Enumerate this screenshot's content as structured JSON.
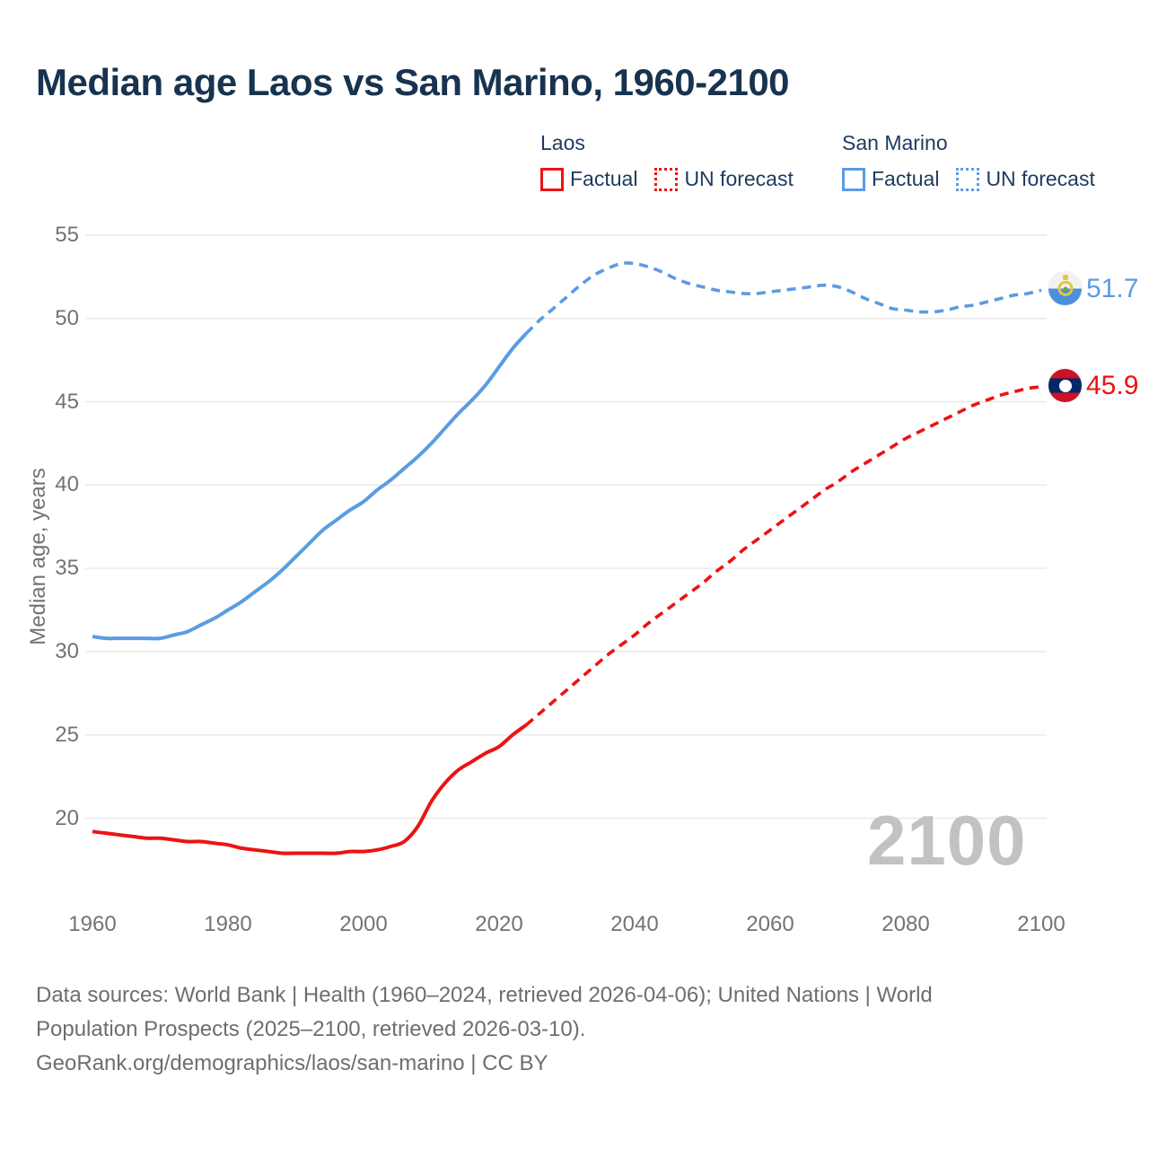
{
  "title": "Median age Laos vs San Marino, 1960-2100",
  "watermark": "2100",
  "colors": {
    "laos": "#ed1212",
    "san_marino": "#5b9ce2",
    "navy_text": "#1d3a5e",
    "axis_text": "#737373",
    "gridline": "#e7e7e7",
    "watermark": "#c2c2c2",
    "footer_text": "#6e6e6e"
  },
  "legend": {
    "groups": [
      {
        "name": "Laos",
        "factual_label": "Factual",
        "forecast_label": "UN forecast"
      },
      {
        "name": "San Marino",
        "factual_label": "Factual",
        "forecast_label": "UN forecast"
      }
    ]
  },
  "end_labels": [
    {
      "series": "San Marino",
      "value": "51.7",
      "flag": "san-marino-flag"
    },
    {
      "series": "Laos",
      "value": "45.9",
      "flag": "laos-flag"
    }
  ],
  "footer": {
    "line1": "Data sources: World Bank | Health (1960–2024, retrieved 2026-04-06); United Nations | World",
    "line2": "Population Prospects (2025–2100, retrieved 2026-03-10).",
    "line3": "GeoRank.org/demographics/laos/san-marino | CC BY"
  },
  "chart_data": {
    "type": "line",
    "title": "Median age Laos vs San Marino, 1960-2100",
    "xlabel": "",
    "ylabel": "Median age, years",
    "x_range": [
      1960,
      2100
    ],
    "y_range": [
      20,
      55
    ],
    "x_ticks": [
      1960,
      1980,
      2000,
      2020,
      2040,
      2060,
      2080,
      2100
    ],
    "y_ticks": [
      20,
      25,
      30,
      35,
      40,
      45,
      50,
      55
    ],
    "grid": "horizontal",
    "legend_position": "top-right",
    "series": [
      {
        "name": "Laos — Factual",
        "country": "Laos",
        "kind": "factual",
        "style": "solid",
        "color": "#ed1212",
        "points": [
          [
            1960,
            19.2
          ],
          [
            1962,
            19.1
          ],
          [
            1964,
            19.0
          ],
          [
            1966,
            18.9
          ],
          [
            1968,
            18.8
          ],
          [
            1970,
            18.8
          ],
          [
            1972,
            18.7
          ],
          [
            1974,
            18.6
          ],
          [
            1976,
            18.6
          ],
          [
            1978,
            18.5
          ],
          [
            1980,
            18.4
          ],
          [
            1982,
            18.2
          ],
          [
            1984,
            18.1
          ],
          [
            1986,
            18.0
          ],
          [
            1988,
            17.9
          ],
          [
            1990,
            17.9
          ],
          [
            1992,
            17.9
          ],
          [
            1994,
            17.9
          ],
          [
            1996,
            17.9
          ],
          [
            1998,
            18.0
          ],
          [
            2000,
            18.0
          ],
          [
            2002,
            18.1
          ],
          [
            2004,
            18.3
          ],
          [
            2006,
            18.6
          ],
          [
            2008,
            19.5
          ],
          [
            2010,
            21.0
          ],
          [
            2012,
            22.1
          ],
          [
            2014,
            22.9
          ],
          [
            2016,
            23.4
          ],
          [
            2018,
            23.9
          ],
          [
            2020,
            24.3
          ],
          [
            2022,
            25.0
          ],
          [
            2024,
            25.6
          ]
        ]
      },
      {
        "name": "Laos — UN forecast",
        "country": "Laos",
        "kind": "forecast",
        "style": "dashed",
        "color": "#ed1212",
        "points": [
          [
            2024,
            25.6
          ],
          [
            2026,
            26.3
          ],
          [
            2028,
            27.0
          ],
          [
            2030,
            27.7
          ],
          [
            2032,
            28.4
          ],
          [
            2034,
            29.1
          ],
          [
            2036,
            29.8
          ],
          [
            2038,
            30.4
          ],
          [
            2040,
            31.0
          ],
          [
            2042,
            31.7
          ],
          [
            2044,
            32.3
          ],
          [
            2046,
            32.9
          ],
          [
            2048,
            33.5
          ],
          [
            2050,
            34.1
          ],
          [
            2052,
            34.8
          ],
          [
            2054,
            35.4
          ],
          [
            2056,
            36.1
          ],
          [
            2058,
            36.7
          ],
          [
            2060,
            37.3
          ],
          [
            2062,
            37.9
          ],
          [
            2064,
            38.5
          ],
          [
            2066,
            39.1
          ],
          [
            2068,
            39.7
          ],
          [
            2070,
            40.2
          ],
          [
            2072,
            40.8
          ],
          [
            2074,
            41.3
          ],
          [
            2076,
            41.8
          ],
          [
            2078,
            42.3
          ],
          [
            2080,
            42.8
          ],
          [
            2082,
            43.2
          ],
          [
            2084,
            43.6
          ],
          [
            2086,
            44.0
          ],
          [
            2088,
            44.4
          ],
          [
            2090,
            44.8
          ],
          [
            2092,
            45.1
          ],
          [
            2094,
            45.4
          ],
          [
            2096,
            45.6
          ],
          [
            2098,
            45.8
          ],
          [
            2100,
            45.9
          ]
        ]
      },
      {
        "name": "San Marino — Factual",
        "country": "San Marino",
        "kind": "factual",
        "style": "solid",
        "color": "#5b9ce2",
        "points": [
          [
            1960,
            30.9
          ],
          [
            1962,
            30.8
          ],
          [
            1964,
            30.8
          ],
          [
            1966,
            30.8
          ],
          [
            1968,
            30.8
          ],
          [
            1970,
            30.8
          ],
          [
            1972,
            31.0
          ],
          [
            1974,
            31.2
          ],
          [
            1976,
            31.6
          ],
          [
            1978,
            32.0
          ],
          [
            1980,
            32.5
          ],
          [
            1982,
            33.0
          ],
          [
            1984,
            33.6
          ],
          [
            1986,
            34.2
          ],
          [
            1988,
            34.9
          ],
          [
            1990,
            35.7
          ],
          [
            1992,
            36.5
          ],
          [
            1994,
            37.3
          ],
          [
            1996,
            37.9
          ],
          [
            1998,
            38.5
          ],
          [
            2000,
            39.0
          ],
          [
            2002,
            39.7
          ],
          [
            2004,
            40.3
          ],
          [
            2006,
            41.0
          ],
          [
            2008,
            41.7
          ],
          [
            2010,
            42.5
          ],
          [
            2012,
            43.4
          ],
          [
            2014,
            44.3
          ],
          [
            2016,
            45.1
          ],
          [
            2018,
            46.0
          ],
          [
            2020,
            47.1
          ],
          [
            2022,
            48.2
          ],
          [
            2024,
            49.1
          ]
        ]
      },
      {
        "name": "San Marino — UN forecast",
        "country": "San Marino",
        "kind": "forecast",
        "style": "dashed",
        "color": "#5b9ce2",
        "points": [
          [
            2024,
            49.1
          ],
          [
            2026,
            49.9
          ],
          [
            2028,
            50.6
          ],
          [
            2030,
            51.3
          ],
          [
            2032,
            52.0
          ],
          [
            2034,
            52.6
          ],
          [
            2036,
            53.0
          ],
          [
            2038,
            53.3
          ],
          [
            2040,
            53.3
          ],
          [
            2042,
            53.1
          ],
          [
            2044,
            52.8
          ],
          [
            2046,
            52.4
          ],
          [
            2048,
            52.1
          ],
          [
            2050,
            51.9
          ],
          [
            2052,
            51.7
          ],
          [
            2054,
            51.6
          ],
          [
            2056,
            51.5
          ],
          [
            2058,
            51.5
          ],
          [
            2060,
            51.6
          ],
          [
            2062,
            51.7
          ],
          [
            2064,
            51.8
          ],
          [
            2066,
            51.9
          ],
          [
            2068,
            52.0
          ],
          [
            2070,
            51.9
          ],
          [
            2072,
            51.6
          ],
          [
            2074,
            51.2
          ],
          [
            2076,
            50.9
          ],
          [
            2078,
            50.6
          ],
          [
            2080,
            50.5
          ],
          [
            2082,
            50.4
          ],
          [
            2084,
            50.4
          ],
          [
            2086,
            50.5
          ],
          [
            2088,
            50.7
          ],
          [
            2090,
            50.8
          ],
          [
            2092,
            51.0
          ],
          [
            2094,
            51.2
          ],
          [
            2096,
            51.4
          ],
          [
            2098,
            51.5
          ],
          [
            2100,
            51.7
          ]
        ]
      }
    ],
    "end_labels": [
      {
        "series": "San Marino",
        "value": 51.7
      },
      {
        "series": "Laos",
        "value": 45.9
      }
    ]
  }
}
